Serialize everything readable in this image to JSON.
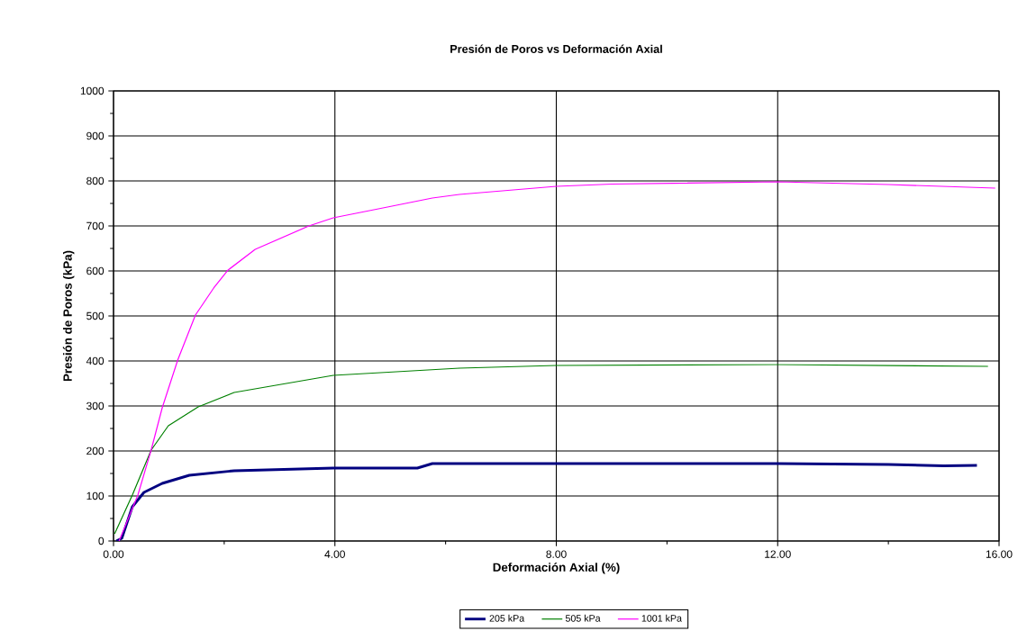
{
  "chart_data": {
    "type": "line",
    "title": "Presión de Poros vs Deformación Axial",
    "xlabel": "Deformación Axial (%)",
    "ylabel": "Presión de Poros (kPa)",
    "xlim": [
      0,
      16
    ],
    "ylim": [
      0,
      1000
    ],
    "xticks": [
      {
        "value": 0,
        "label": "0.00"
      },
      {
        "value": 4,
        "label": "4.00"
      },
      {
        "value": 8,
        "label": "8.00"
      },
      {
        "value": 12,
        "label": "12.00"
      },
      {
        "value": 16,
        "label": "16.00"
      }
    ],
    "yticks": [
      0,
      100,
      200,
      300,
      400,
      500,
      600,
      700,
      800,
      900,
      1000
    ],
    "grid": true,
    "legend": "bottom",
    "marker": "none",
    "line_style": "solid",
    "series": [
      {
        "name": "205 kPa",
        "color": "#000080",
        "x": [
          0.05,
          0.15,
          0.34,
          0.55,
          0.88,
          1.37,
          2.18,
          3.97,
          5.49,
          5.76,
          6.25,
          8.0,
          12.0,
          14.0,
          15.0,
          15.6
        ],
        "values": [
          0,
          6,
          76,
          108,
          128,
          146,
          156,
          162,
          162,
          172,
          172,
          172,
          172,
          170,
          167,
          168
        ]
      },
      {
        "name": "505 kPa",
        "color": "#008000",
        "x": [
          0.02,
          0.34,
          0.68,
          0.99,
          1.53,
          2.18,
          3.97,
          6.25,
          8.0,
          12.0,
          15.8
        ],
        "values": [
          16,
          102,
          202,
          256,
          298,
          330,
          368,
          384,
          390,
          392,
          388
        ]
      },
      {
        "name": "1001 kPa",
        "color": "#ff00ff",
        "x": [
          0.1,
          0.44,
          0.68,
          0.88,
          1.16,
          1.48,
          1.81,
          2.07,
          2.56,
          3.53,
          3.97,
          4.95,
          5.76,
          6.25,
          8.0,
          9.0,
          12.0,
          14.0,
          15.93
        ],
        "values": [
          0,
          102,
          202,
          296,
          402,
          502,
          562,
          602,
          648,
          700,
          718,
          742,
          762,
          770,
          788,
          793,
          798,
          792,
          784
        ]
      }
    ]
  }
}
